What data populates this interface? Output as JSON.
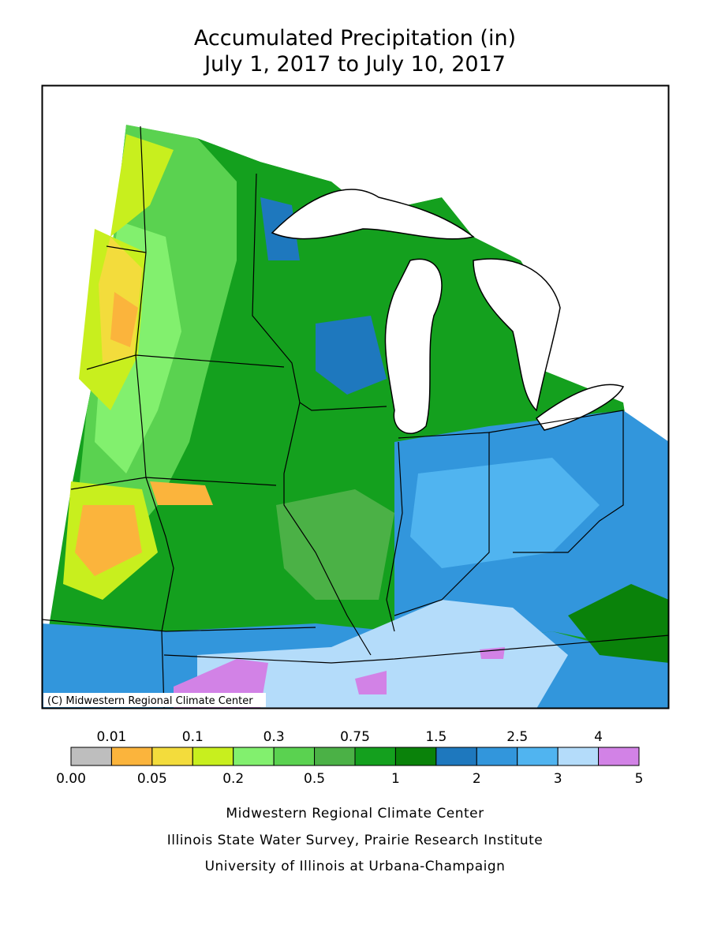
{
  "header": {
    "title": "Accumulated Precipitation (in)",
    "subtitle": "July 1, 2017 to July 10, 2017"
  },
  "map": {
    "copyright": "(C) Midwestern Regional Climate Center"
  },
  "legend": {
    "labels": [
      "0.00",
      "0.01",
      "0.05",
      "0.1",
      "0.2",
      "0.3",
      "0.5",
      "0.75",
      "1",
      "1.5",
      "2",
      "2.5",
      "3",
      "4",
      "5"
    ],
    "colors": [
      "#bebebe",
      "#fbb43c",
      "#f3dc3c",
      "#c8ef1e",
      "#82f06e",
      "#5ad250",
      "#4bb146",
      "#14a01e",
      "#0a820a",
      "#1e78be",
      "#3296dc",
      "#50b4f0",
      "#b4dcfa",
      "#d282e6"
    ]
  },
  "footer": {
    "lines": [
      "Midwestern Regional Climate Center",
      "Illinois State Water Survey, Prairie Research Institute",
      "University of Illinois at Urbana-Champaign"
    ]
  }
}
